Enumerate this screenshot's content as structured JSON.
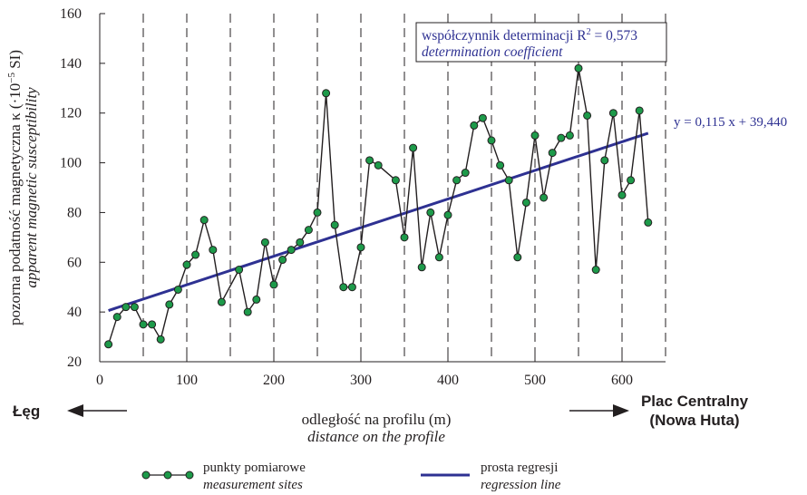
{
  "chart_data": {
    "type": "line",
    "xlim": [
      0,
      650
    ],
    "ylim": [
      20,
      160
    ],
    "x_ticks": [
      0,
      100,
      200,
      300,
      400,
      500,
      600
    ],
    "y_ticks": [
      20,
      40,
      60,
      80,
      100,
      120,
      140,
      160
    ],
    "x_tick_labels": [
      "0",
      "100",
      "200",
      "300",
      "400",
      "500",
      "600"
    ],
    "y_tick_labels": [
      "20",
      "40",
      "60",
      "80",
      "100",
      "120",
      "140",
      "160"
    ],
    "vertical_dashed_lines": [
      50,
      100,
      150,
      200,
      250,
      300,
      350,
      400,
      450,
      500,
      550,
      600,
      650
    ],
    "ylabel_line1": "pozorna podatność magnetyczna κ (·10",
    "ylabel_sup": "−5",
    "ylabel_unit": " SI)",
    "ylabel_line2": "apparent magnetic susceptibility",
    "xlabel_line1": "odległość na profilu (m)",
    "xlabel_line2": "distance on the profile",
    "series": [
      {
        "name": "punkty pomiarowe",
        "name_en": "measurement sites",
        "color": "#1d9a4a",
        "line_color": "#231f20",
        "x": [
          10,
          20,
          30,
          40,
          50,
          60,
          70,
          80,
          90,
          100,
          110,
          120,
          130,
          140,
          160,
          170,
          180,
          190,
          200,
          210,
          220,
          230,
          240,
          250,
          260,
          270,
          280,
          290,
          300,
          310,
          320,
          340,
          350,
          360,
          370,
          380,
          390,
          400,
          410,
          420,
          430,
          440,
          450,
          460,
          470,
          480,
          490,
          500,
          510,
          520,
          530,
          540,
          550,
          560,
          570,
          580,
          590,
          600,
          610,
          620,
          630
        ],
        "values": [
          27,
          38,
          42,
          42,
          35,
          35,
          29,
          43,
          49,
          59,
          63,
          77,
          65,
          44,
          57,
          40,
          45,
          68,
          51,
          61,
          65,
          68,
          73,
          80,
          128,
          75,
          50,
          50,
          66,
          101,
          99,
          93,
          70,
          106,
          58,
          80,
          62,
          79,
          93,
          96,
          115,
          118,
          109,
          99,
          93,
          62,
          84,
          111,
          86,
          104,
          110,
          111,
          138,
          119,
          57,
          101,
          120,
          87,
          93,
          121,
          76
        ]
      },
      {
        "name": "prosta regresji",
        "name_en": "regression line",
        "color": "#2e3192",
        "type": "regression",
        "slope": 0.115,
        "intercept": 39.44,
        "x_range": [
          10,
          630
        ]
      }
    ],
    "annotations": {
      "r2_label_pl": "współczynnik determinacji R",
      "r2_sup": "2",
      "r2_value": " = 0,573",
      "r2_label_en": "determination coefficient",
      "equation": "y = 0,115 x + 39,440",
      "left_place": "Łęg",
      "right_place_line1": "Plac Centralny",
      "right_place_line2": "(Nowa Huta)"
    },
    "legend": {
      "placement": "bottom"
    }
  }
}
